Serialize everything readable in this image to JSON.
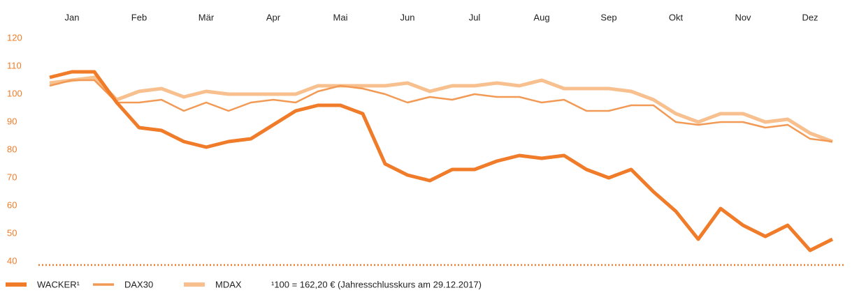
{
  "chart_data": {
    "type": "line",
    "categories": [
      null,
      "Jan",
      null,
      null,
      "Feb",
      null,
      null,
      "Mär",
      null,
      null,
      "Apr",
      null,
      null,
      "Mai",
      null,
      null,
      "Jun",
      null,
      null,
      "Jul",
      null,
      null,
      "Aug",
      null,
      null,
      "Sep",
      null,
      null,
      "Okt",
      null,
      null,
      "Nov",
      null,
      null,
      "Dez",
      null
    ],
    "series": [
      {
        "name": "WACKER¹",
        "color": "#f07c2a",
        "values": [
          106,
          108,
          108,
          97,
          88,
          87,
          83,
          81,
          83,
          84,
          89,
          94,
          96,
          96,
          93,
          75,
          71,
          69,
          73,
          73,
          76,
          78,
          77,
          78,
          73,
          70,
          73,
          65,
          58,
          48,
          59,
          53,
          49,
          53,
          44,
          48
        ]
      },
      {
        "name": "DAX30",
        "color": "#f29a55",
        "values": [
          103,
          105,
          105,
          97,
          97,
          98,
          94,
          97,
          94,
          97,
          98,
          97,
          101,
          103,
          102,
          100,
          97,
          99,
          98,
          100,
          99,
          99,
          97,
          98,
          94,
          94,
          96,
          96,
          90,
          89,
          90,
          90,
          88,
          89,
          84,
          83
        ]
      },
      {
        "name": "MDAX",
        "color": "#f7c08e",
        "values": [
          104,
          105,
          106,
          98,
          101,
          102,
          99,
          101,
          100,
          100,
          100,
          100,
          103,
          103,
          103,
          103,
          104,
          101,
          103,
          103,
          104,
          103,
          105,
          102,
          102,
          102,
          101,
          98,
          93,
          90,
          93,
          93,
          90,
          91,
          86,
          83
        ]
      }
    ],
    "ylim": [
      40,
      120
    ],
    "yticks": [
      40,
      50,
      60,
      70,
      80,
      90,
      100,
      110,
      120
    ],
    "note": "¹100 = 162,20 € (Jahresschlusskurs am 29.12.2017)"
  }
}
